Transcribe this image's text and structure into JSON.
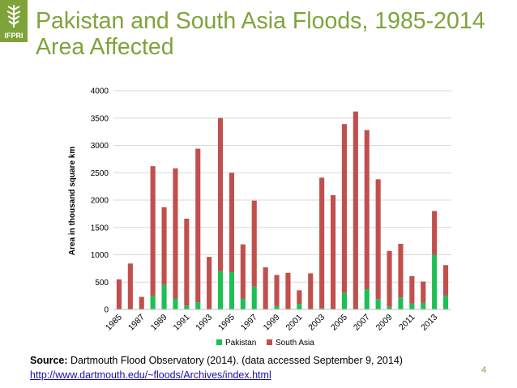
{
  "title_line1": "Pakistan and South Asia Floods, 1985-2014",
  "title_line2": "Area Affected",
  "logo_text": "IFPRI",
  "source_label": "Source:",
  "source_text": " Dartmouth Flood Observatory (2014). (data accessed September 9, 2014)",
  "source_link": "http://www.dartmouth.edu/~floods/Archives/index.html",
  "page_number": "4",
  "colors": {
    "title": "#7fa33b",
    "pakistan": "#1fbf55",
    "south_asia": "#c0504d"
  },
  "chart_data": {
    "type": "bar",
    "stacked": true,
    "ylabel": "Area in thousand square km",
    "ylim": [
      0,
      4000
    ],
    "yticks": [
      0,
      500,
      1000,
      1500,
      2000,
      2500,
      3000,
      3500,
      4000
    ],
    "grid": true,
    "legend": "bottom",
    "x_tick_labels": [
      "1985",
      "1987",
      "1989",
      "1991",
      "1993",
      "1995",
      "1997",
      "1999",
      "2001",
      "2003",
      "2005",
      "2007",
      "2009",
      "2011",
      "2013"
    ],
    "categories": [
      "1985",
      "1986",
      "1987",
      "1988",
      "1989",
      "1990",
      "1991",
      "1992",
      "1993",
      "1994",
      "1995",
      "1996",
      "1997",
      "1998",
      "1999",
      "2000",
      "2001",
      "2002",
      "2003",
      "2004",
      "2005",
      "2006",
      "2007",
      "2008",
      "2009",
      "2010",
      "2011",
      "2012",
      "2013",
      "2014"
    ],
    "series": [
      {
        "name": "Pakistan",
        "values": [
          0,
          0,
          0,
          250,
          450,
          200,
          70,
          130,
          0,
          700,
          680,
          200,
          420,
          0,
          60,
          0,
          100,
          0,
          20,
          0,
          300,
          0,
          370,
          190,
          50,
          220,
          110,
          120,
          1000,
          250
        ]
      },
      {
        "name": "South Asia",
        "values": [
          550,
          840,
          230,
          2370,
          1420,
          2380,
          1590,
          2810,
          960,
          2800,
          1820,
          990,
          1570,
          770,
          570,
          670,
          250,
          660,
          2390,
          2090,
          3090,
          3620,
          2910,
          2190,
          1020,
          980,
          500,
          390,
          800,
          560
        ]
      }
    ]
  }
}
